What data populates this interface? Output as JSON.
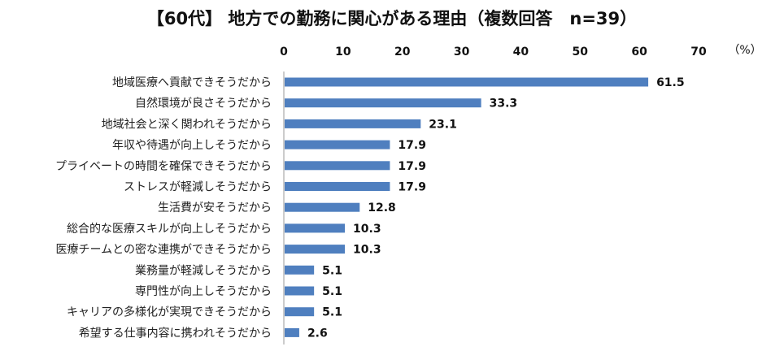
{
  "chart_data": {
    "type": "bar",
    "orientation": "horizontal",
    "title": "【60代】 地方での勤務に関心がある理由（複数回答　n=39）",
    "unit_label": "（%）",
    "xlim": [
      0,
      70
    ],
    "ticks": [
      "0",
      "10",
      "20",
      "30",
      "40",
      "50",
      "60",
      "70"
    ],
    "bar_color": "#4F7FBF",
    "highlight_color": "#D62E84",
    "grid": false,
    "legend": "none",
    "categories": [
      "地域医療へ貢献できそうだから",
      "自然環境が良さそうだから",
      "地域社会と深く関われそうだから",
      "年収や待遇が向上しそうだから",
      "プライベートの時間を確保できそうだから",
      "ストレスが軽減しそうだから",
      "生活費が安そうだから",
      "総合的な医療スキルが向上しそうだから",
      "医療チームとの密な連携ができそうだから",
      "業務量が軽減しそうだから",
      "専門性が向上しそうだから",
      "キャリアの多様化が実現できそうだから",
      "希望する仕事内容に携われそうだから"
    ],
    "values": [
      61.5,
      33.3,
      23.1,
      17.9,
      17.9,
      17.9,
      12.8,
      10.3,
      10.3,
      5.1,
      5.1,
      5.1,
      2.6
    ],
    "value_labels": [
      "61.5",
      "33.3",
      "23.1",
      "17.9",
      "17.9",
      "17.9",
      "12.8",
      "10.3",
      "10.3",
      "5.1",
      "5.1",
      "5.1",
      "2.6"
    ]
  }
}
